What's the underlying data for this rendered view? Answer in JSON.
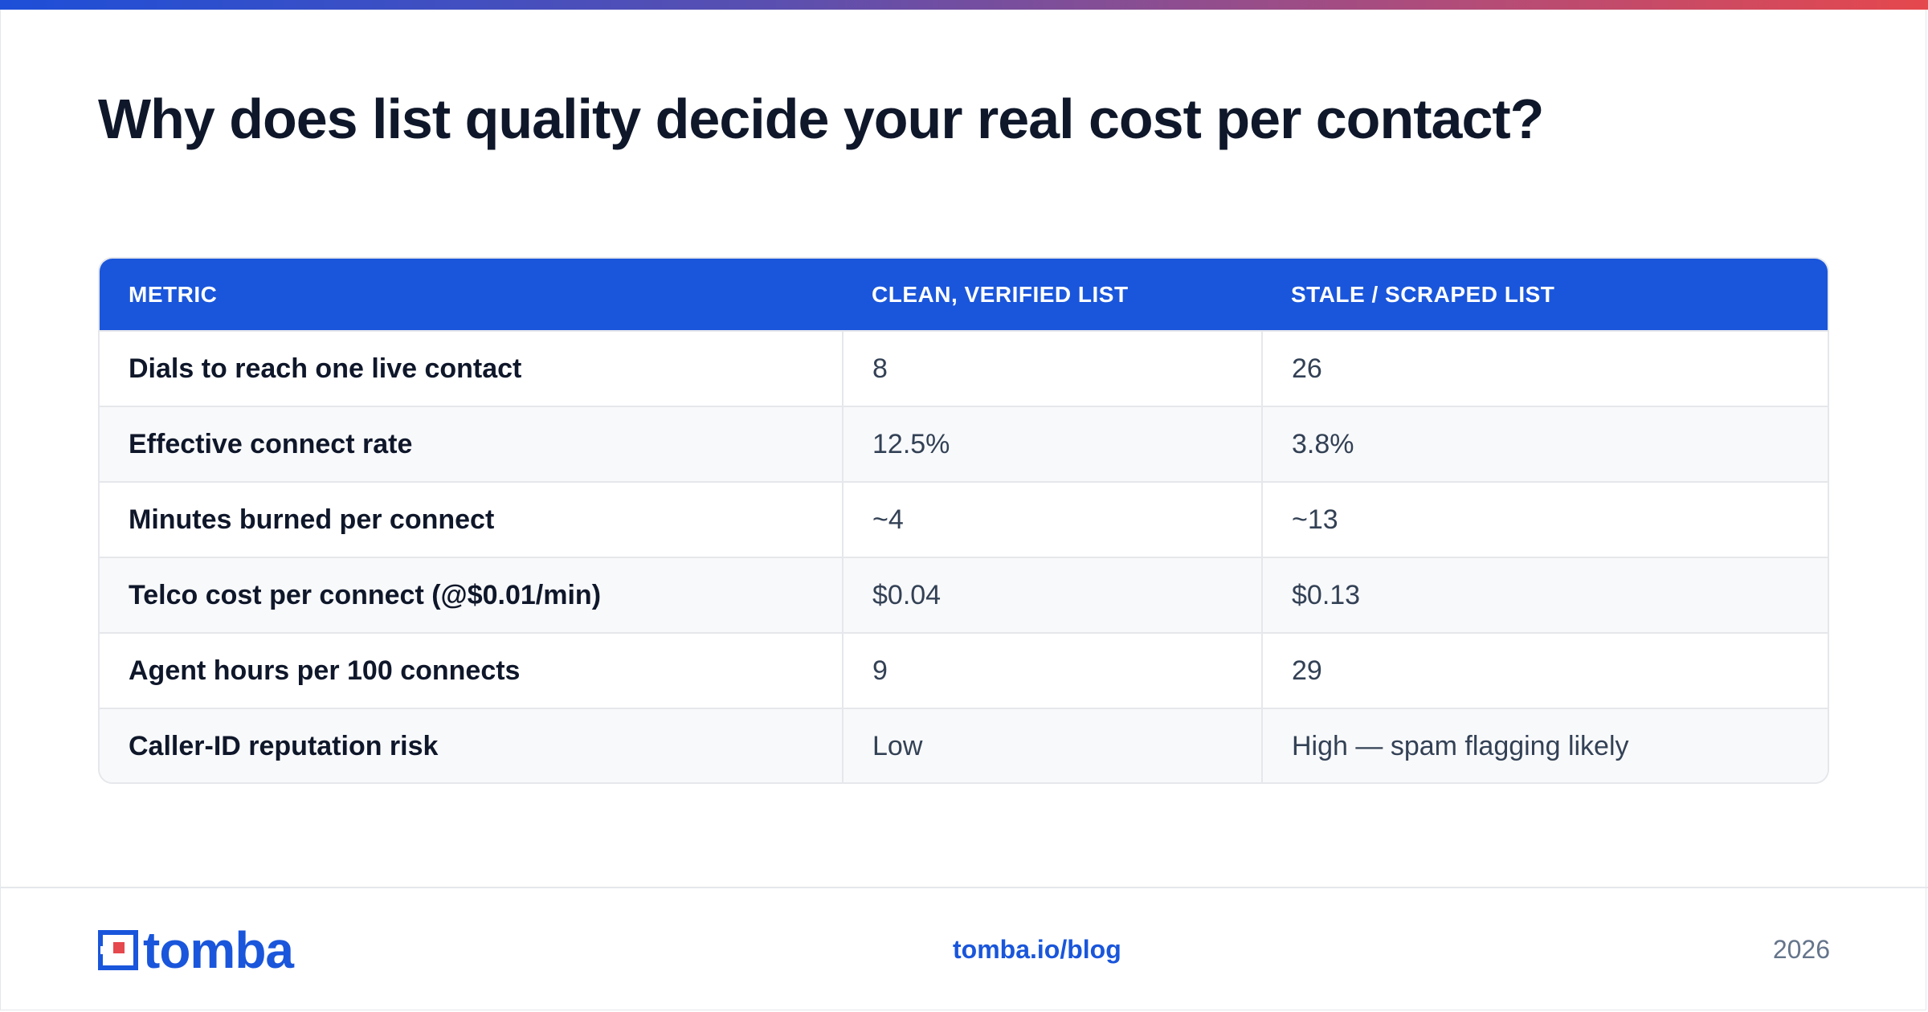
{
  "header": {
    "title": "Why does list quality decide your real cost per contact?"
  },
  "table": {
    "columns": [
      "METRIC",
      "CLEAN, VERIFIED LIST",
      "STALE / SCRAPED LIST"
    ],
    "rows": [
      {
        "metric": "Dials to reach one live contact",
        "clean": "8",
        "stale": "26"
      },
      {
        "metric": "Effective connect rate",
        "clean": "12.5%",
        "stale": "3.8%"
      },
      {
        "metric": "Minutes burned per connect",
        "clean": "~4",
        "stale": "~13"
      },
      {
        "metric": "Telco cost per connect (@$0.01/min)",
        "clean": "$0.04",
        "stale": "$0.13"
      },
      {
        "metric": "Agent hours per 100 connects",
        "clean": "9",
        "stale": "29"
      },
      {
        "metric": "Caller-ID reputation risk",
        "clean": "Low",
        "stale": "High — spam flagging likely"
      }
    ]
  },
  "footer": {
    "logo_text": "tomba",
    "link": "tomba.io/blog",
    "year": "2026"
  },
  "colors": {
    "accent": "#1a56db",
    "logo_red": "#e5484d",
    "title": "#0f172a"
  }
}
